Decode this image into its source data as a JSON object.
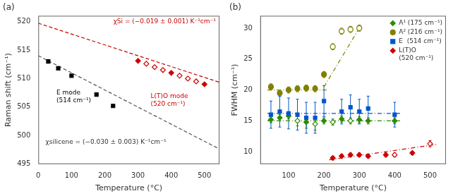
{
  "chart_data": [
    {
      "type": "scatter",
      "title": "(a)",
      "xlabel": "Temperature (°C)",
      "ylabel": "Raman shift (cm⁻¹)",
      "xlim": [
        0,
        545
      ],
      "xticks": [
        0,
        100,
        200,
        300,
        400,
        500
      ],
      "ylim": [
        495,
        521
      ],
      "yticks": [
        495,
        500,
        505,
        510,
        515,
        520
      ],
      "grid": false,
      "series": [
        {
          "type": "line",
          "line_style": "dashed",
          "color": "#555555",
          "x": [
            0,
            545
          ],
          "values": [
            514.0,
            497.65
          ]
        },
        {
          "type": "line",
          "line_style": "dashed",
          "color": "#cc0000",
          "x": [
            0,
            545
          ],
          "values": [
            519.7,
            509.345
          ]
        },
        {
          "type": "scatter",
          "marker": "filled_square",
          "color": "#000000",
          "x": [
            30,
            60,
            100,
            175,
            225
          ],
          "values": [
            513.0,
            511.8,
            510.5,
            507.2,
            505.2
          ]
        },
        {
          "type": "scatter",
          "marker": "filled_diamond",
          "color": "#cc0000",
          "x": [
            300,
            400,
            500
          ],
          "values": [
            513.1,
            511.0,
            509.0
          ]
        },
        {
          "type": "scatter",
          "marker": "open_diamond",
          "color": "#cc0000",
          "x": [
            325,
            350,
            375,
            425,
            450,
            475
          ],
          "values": [
            512.6,
            512.0,
            511.5,
            510.5,
            510.0,
            509.5
          ]
        }
      ],
      "annotations": [
        {
          "text": "χSi = (−0.019 ± 0.001) K⁻¹cm⁻¹",
          "color": "#cc0000"
        },
        {
          "text": "L(T)O mode\n(520 cm⁻¹)",
          "color": "#cc0000"
        },
        {
          "text": "E mode\n(514 cm⁻¹)",
          "color": "#000000"
        },
        {
          "text": "χsilicene = (−0.030 ± 0.003) K⁻¹cm⁻¹",
          "color": "#333333"
        }
      ]
    },
    {
      "type": "scatter",
      "title": "(b)",
      "xlabel": "Temperature (°C)",
      "ylabel": "FWHM (cm⁻¹)",
      "xlim": [
        20,
        545
      ],
      "xticks": [
        100,
        200,
        300,
        400,
        500
      ],
      "ylim": [
        8,
        32
      ],
      "yticks": [
        10,
        15,
        20,
        25,
        30
      ],
      "grid": false,
      "legend": "upper right",
      "series": [
        {
          "type": "line",
          "line_style": "dashdot",
          "color": "#2e8b00",
          "x": [
            40,
            420
          ],
          "values": [
            15.0,
            15.0
          ]
        },
        {
          "type": "line",
          "line_style": "dashdot",
          "color": "#808000",
          "x": [
            40,
            210
          ],
          "values": [
            20.0,
            20.0
          ]
        },
        {
          "type": "line",
          "line_style": "dashdot",
          "color": "#808000",
          "x": [
            200,
            305
          ],
          "values": [
            20.5,
            30.5
          ]
        },
        {
          "type": "line",
          "line_style": "dashdot",
          "color": "#0055cc",
          "x": [
            40,
            420
          ],
          "values": [
            16.2,
            16.2
          ]
        },
        {
          "type": "line",
          "line_style": "dashdot",
          "color": "#cc0000",
          "x": [
            215,
            520
          ],
          "values": [
            8.7,
            11.2
          ]
        },
        {
          "type": "scatter",
          "name": "A¹ (175 cm⁻¹)",
          "marker": "filled_diamond",
          "color": "#2e8b00",
          "x": [
            50,
            75,
            100,
            150,
            200,
            250,
            300,
            325,
            400
          ],
          "values": [
            15.2,
            15.5,
            15.8,
            14.8,
            15.0,
            15.3,
            15.2,
            15.0,
            15.0
          ],
          "yerr": [
            0.5,
            0.5,
            0.5,
            1.0,
            0.5,
            0.5,
            0.5,
            0.5,
            0.5
          ]
        },
        {
          "type": "scatter",
          "marker": "open_diamond",
          "color": "#2e8b00",
          "x": [
            125,
            175,
            225,
            275
          ],
          "values": [
            15.0,
            14.5,
            14.8,
            15.0
          ],
          "yerr": [
            0.8,
            1.0,
            0.5,
            0.5
          ]
        },
        {
          "type": "scatter",
          "name": "A² (216 cm⁻¹)",
          "marker": "filled_circle",
          "color": "#808000",
          "x": [
            50,
            75,
            100,
            125,
            150,
            175,
            200
          ],
          "values": [
            20.5,
            19.5,
            20.0,
            20.2,
            20.3,
            20.2,
            22.5
          ],
          "yerr": [
            0.5,
            0.5,
            0.5,
            0.5,
            0.5,
            0.5,
            0.5
          ]
        },
        {
          "type": "scatter",
          "marker": "open_circle",
          "color": "#808000",
          "x": [
            225,
            250,
            275,
            300
          ],
          "values": [
            27.0,
            29.5,
            29.8,
            30.0
          ],
          "yerr": [
            0.5,
            0.5,
            0.5,
            0.5
          ]
        },
        {
          "type": "scatter",
          "name": "E  (514 cm⁻¹)",
          "marker": "filled_square",
          "color": "#0055cc",
          "x": [
            50,
            75,
            100,
            125,
            150,
            175,
            200,
            250,
            275,
            300,
            325,
            400
          ],
          "values": [
            16.0,
            16.5,
            16.2,
            16.0,
            15.5,
            15.5,
            18.2,
            16.5,
            17.2,
            16.5,
            17.0,
            16.0
          ],
          "yerr": [
            2.2,
            2.5,
            2.5,
            2.5,
            2.5,
            2.5,
            2.5,
            2.0,
            2.0,
            2.0,
            2.0,
            2.0
          ]
        },
        {
          "type": "scatter",
          "name": "L(T)O\n(520 cm⁻¹)",
          "marker": "filled_diamond",
          "color": "#cc0000",
          "x": [
            225,
            250,
            275,
            300,
            325,
            375,
            450
          ],
          "values": [
            9.0,
            9.3,
            9.5,
            9.5,
            9.3,
            9.5,
            9.8
          ],
          "yerr": [
            0.3,
            0.3,
            0.3,
            0.3,
            0.3,
            0.3,
            0.3
          ]
        },
        {
          "type": "scatter",
          "marker": "open_diamond",
          "color": "#cc0000",
          "x": [
            400,
            500
          ],
          "values": [
            9.5,
            11.3
          ],
          "yerr": [
            0.3,
            0.5
          ]
        }
      ]
    }
  ]
}
